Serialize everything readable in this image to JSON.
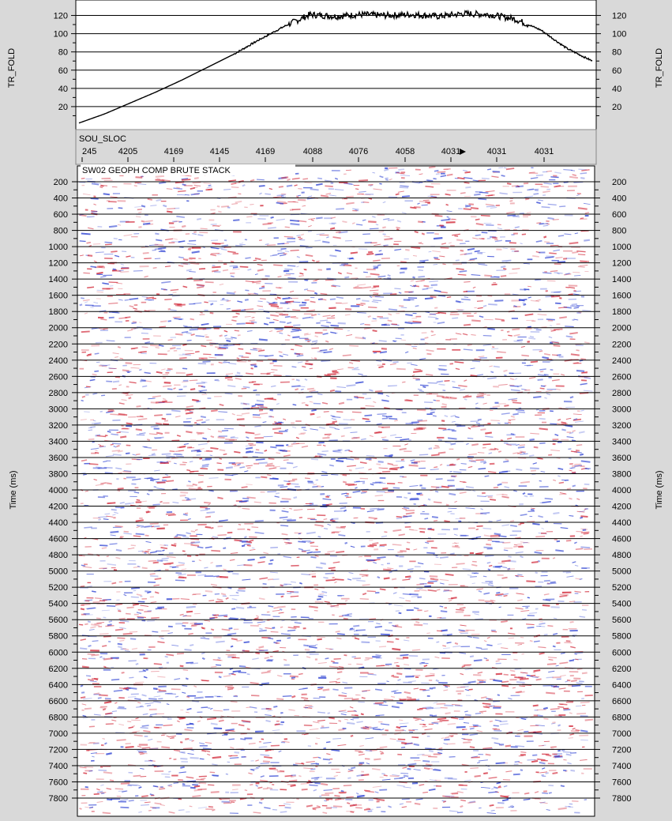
{
  "colors": {
    "background": "#d9d9d9",
    "plot_bg": "#ffffff",
    "line": "#000000",
    "seismic_positive": "#d22a3a",
    "seismic_negative": "#2a3fd2"
  },
  "header": {
    "axis_label": "SOU_SLOC",
    "ticks": [
      "245",
      "4205",
      "4169",
      "4145",
      "4169",
      "4088",
      "4076",
      "4058",
      "4031",
      "4031",
      "4031"
    ]
  },
  "chart_data": [
    {
      "type": "line",
      "ylabel": "TR_FOLD",
      "ylabel_right": "TR_FOLD",
      "ylim": [
        0,
        130
      ],
      "yticks": [
        20,
        40,
        60,
        80,
        100,
        120
      ],
      "grid": true,
      "x": [
        0,
        0.05,
        0.1,
        0.15,
        0.2,
        0.25,
        0.3,
        0.35,
        0.4,
        0.45,
        0.5,
        0.55,
        0.6,
        0.65,
        0.7,
        0.75,
        0.8,
        0.85,
        0.9,
        0.95,
        1.0
      ],
      "series": [
        {
          "values": [
            2,
            12,
            24,
            36,
            49,
            63,
            77,
            93,
            108,
            121,
            119,
            121,
            120,
            121,
            119,
            122,
            121,
            116,
            104,
            84,
            70
          ]
        }
      ]
    },
    {
      "type": "heatmap",
      "title": "SW02 GEOPH COMP BRUTE STACK",
      "ylabel": "Time (ms)",
      "ylabel_right": "Time (ms)",
      "ylim": [
        100,
        7900
      ],
      "yticks": [
        200,
        400,
        600,
        800,
        1000,
        1200,
        1400,
        1600,
        1800,
        2000,
        2200,
        2400,
        2600,
        2800,
        3000,
        3200,
        3400,
        3600,
        3800,
        4000,
        4200,
        4400,
        4600,
        4800,
        5000,
        5200,
        5400,
        5600,
        5800,
        6000,
        6200,
        6400,
        6600,
        6800,
        7000,
        7200,
        7400,
        7600,
        7800
      ],
      "grid": true
    }
  ]
}
